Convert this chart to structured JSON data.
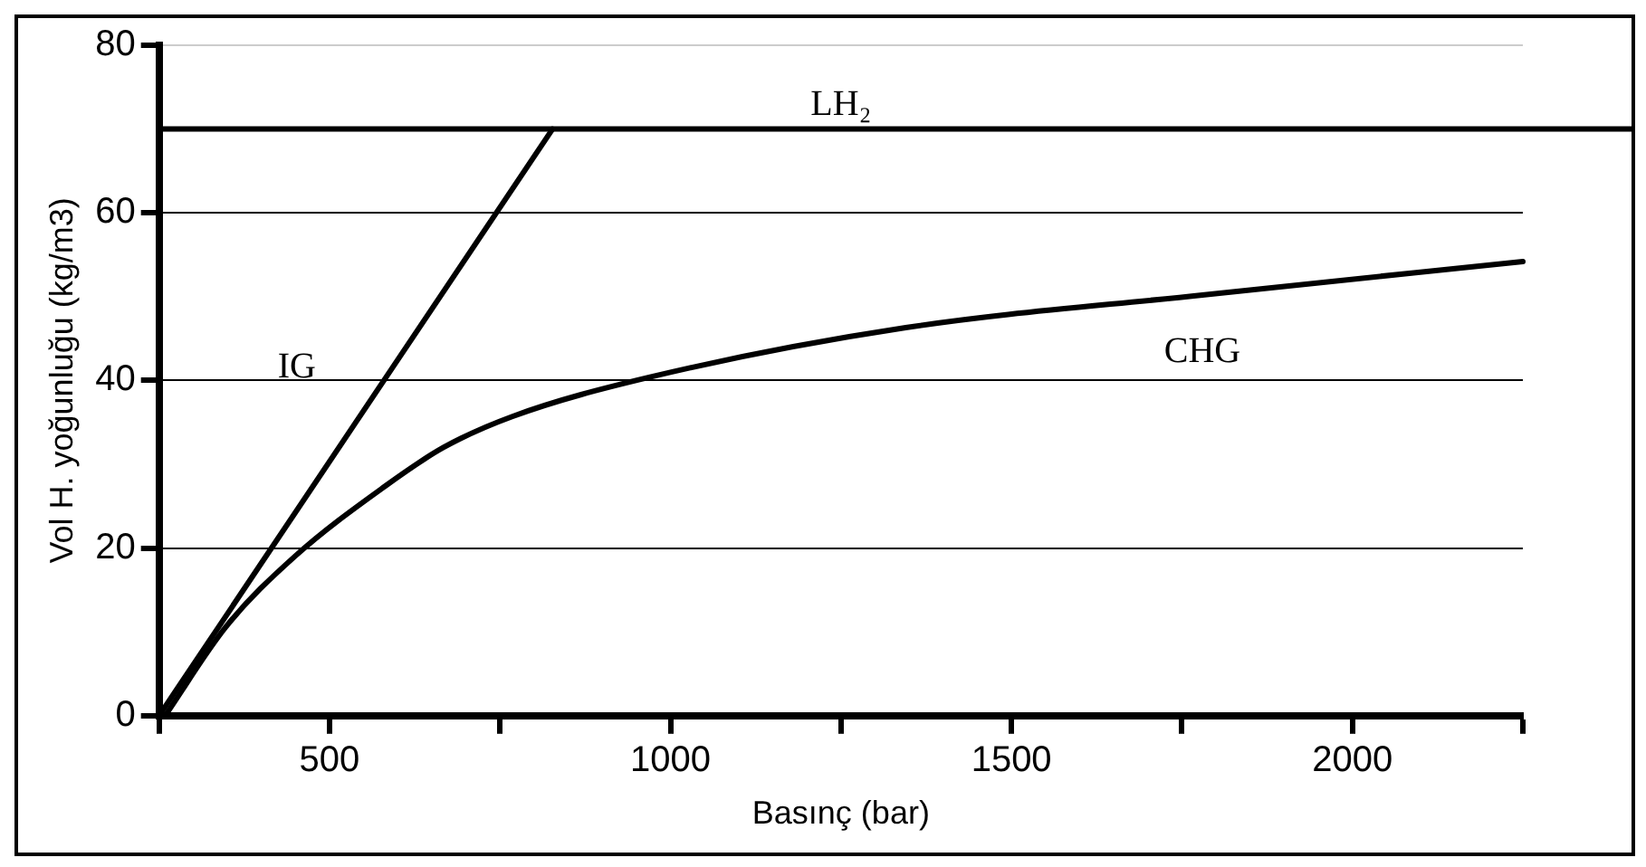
{
  "chart_data": {
    "type": "line",
    "xlabel": "Basınç (bar)",
    "ylabel": "Vol H. yoğunluğu (kg/m3)",
    "xlim": [
      250,
      2250
    ],
    "ylim": [
      0,
      80
    ],
    "xticks": [
      {
        "value": 250,
        "label": null
      },
      500,
      {
        "value": 750,
        "label": null
      },
      1000,
      {
        "value": 1250,
        "label": null
      },
      1500,
      {
        "value": 1750,
        "label": null
      },
      2000,
      {
        "value": 2250,
        "label": null
      }
    ],
    "yticks": [
      0,
      20,
      40,
      60,
      80
    ],
    "grid": "y",
    "legend": false,
    "marker": "none",
    "line_style": "solid",
    "series": [
      {
        "name": "IG",
        "color": "#000000",
        "x": [
          250,
          827
        ],
        "values": [
          0,
          70
        ]
      },
      {
        "name": "CHG",
        "color": "#000000",
        "x": [
          259,
          348,
          449,
          580,
          667,
          768,
          970,
          1345,
          1780,
          2250
        ],
        "values": [
          0,
          10.6,
          19,
          27.3,
          32,
          35.7,
          40.4,
          46.3,
          50.2,
          54.2
        ]
      }
    ],
    "ref_lines": [
      {
        "axis": "y",
        "value": 70,
        "label": "LH₂",
        "color": "#000000"
      }
    ]
  }
}
